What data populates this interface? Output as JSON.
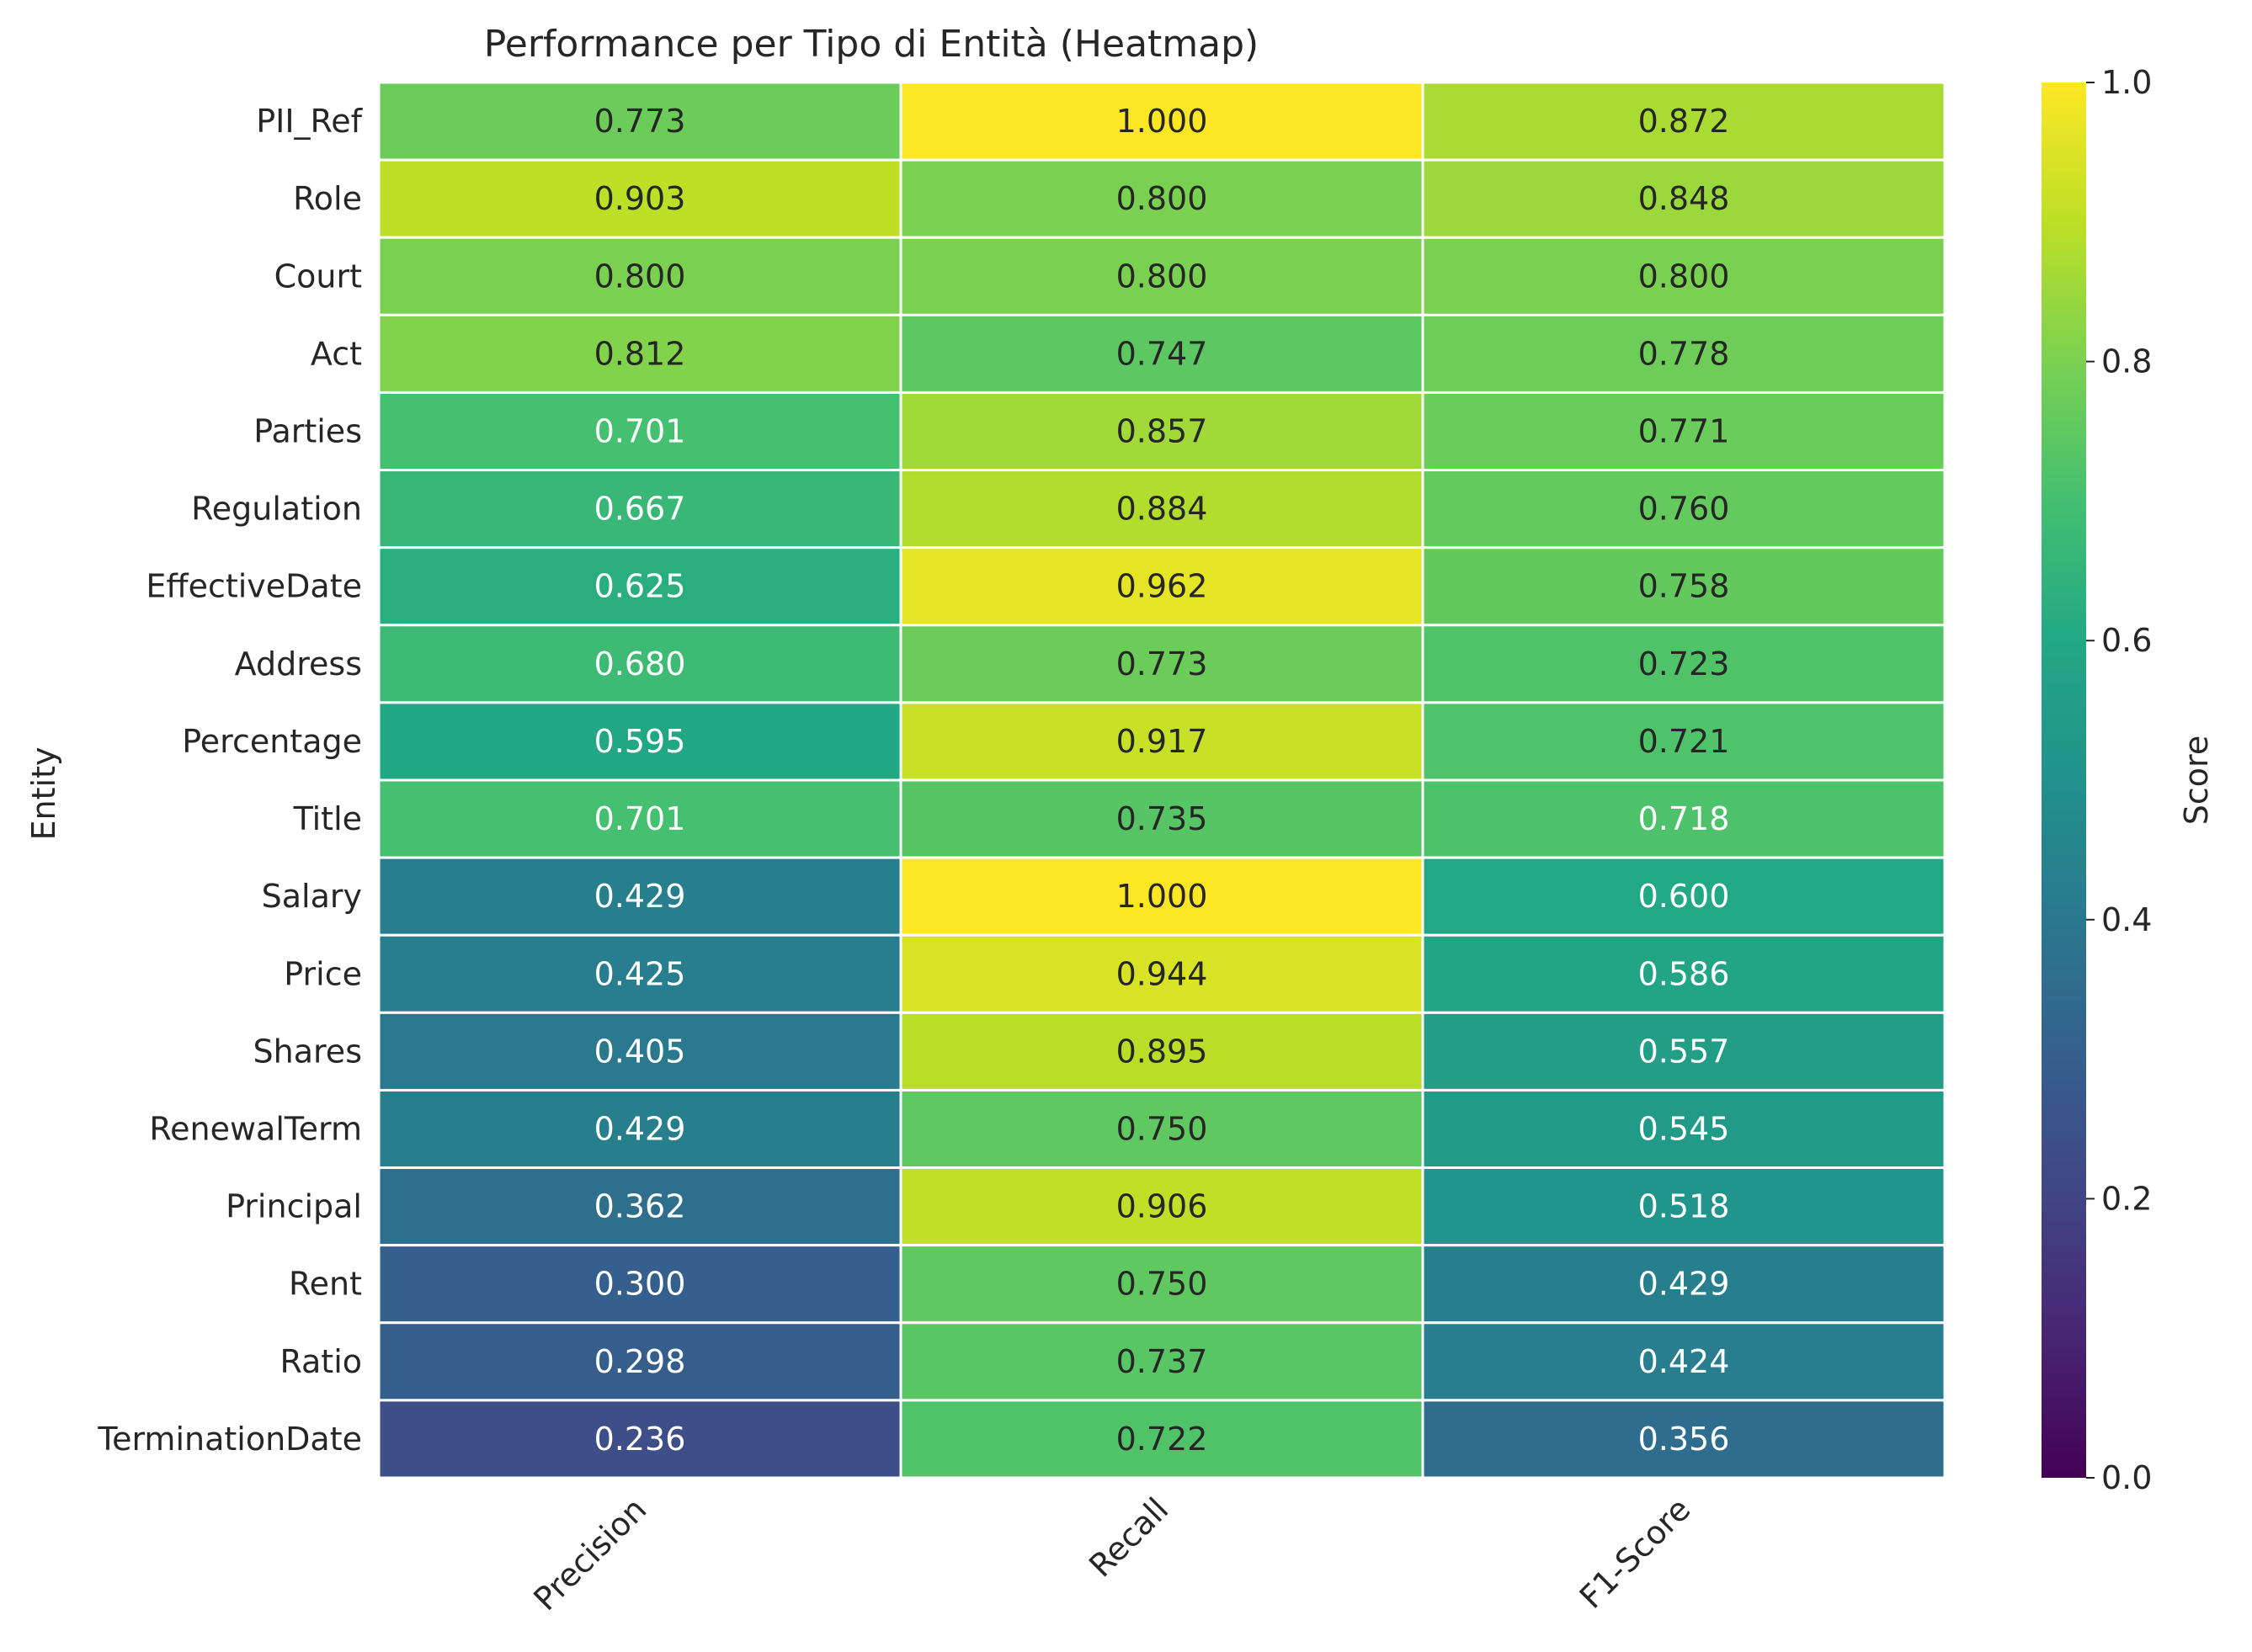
{
  "chart_data": {
    "type": "heatmap",
    "title": "Performance per Tipo di Entità (Heatmap)",
    "xlabel": "",
    "ylabel": "Entity",
    "columns": [
      "Precision",
      "Recall",
      "F1-Score"
    ],
    "rows": [
      "PII_Ref",
      "Role",
      "Court",
      "Act",
      "Parties",
      "Regulation",
      "EffectiveDate",
      "Address",
      "Percentage",
      "Title",
      "Salary",
      "Price",
      "Shares",
      "RenewalTerm",
      "Principal",
      "Rent",
      "Ratio",
      "TerminationDate"
    ],
    "values": [
      [
        0.773,
        1.0,
        0.872
      ],
      [
        0.903,
        0.8,
        0.848
      ],
      [
        0.8,
        0.8,
        0.8
      ],
      [
        0.812,
        0.747,
        0.778
      ],
      [
        0.701,
        0.857,
        0.771
      ],
      [
        0.667,
        0.884,
        0.76
      ],
      [
        0.625,
        0.962,
        0.758
      ],
      [
        0.68,
        0.773,
        0.723
      ],
      [
        0.595,
        0.917,
        0.721
      ],
      [
        0.701,
        0.735,
        0.718
      ],
      [
        0.429,
        1.0,
        0.6
      ],
      [
        0.425,
        0.944,
        0.586
      ],
      [
        0.405,
        0.895,
        0.557
      ],
      [
        0.429,
        0.75,
        0.545
      ],
      [
        0.362,
        0.906,
        0.518
      ],
      [
        0.3,
        0.75,
        0.429
      ],
      [
        0.298,
        0.737,
        0.424
      ],
      [
        0.236,
        0.722,
        0.356
      ]
    ],
    "colormap": "viridis",
    "vmin": 0,
    "vmax": 1,
    "colorbar_label": "Score",
    "colorbar_ticks": [
      "0.0",
      "0.2",
      "0.4",
      "0.6",
      "0.8",
      "1.0"
    ]
  }
}
